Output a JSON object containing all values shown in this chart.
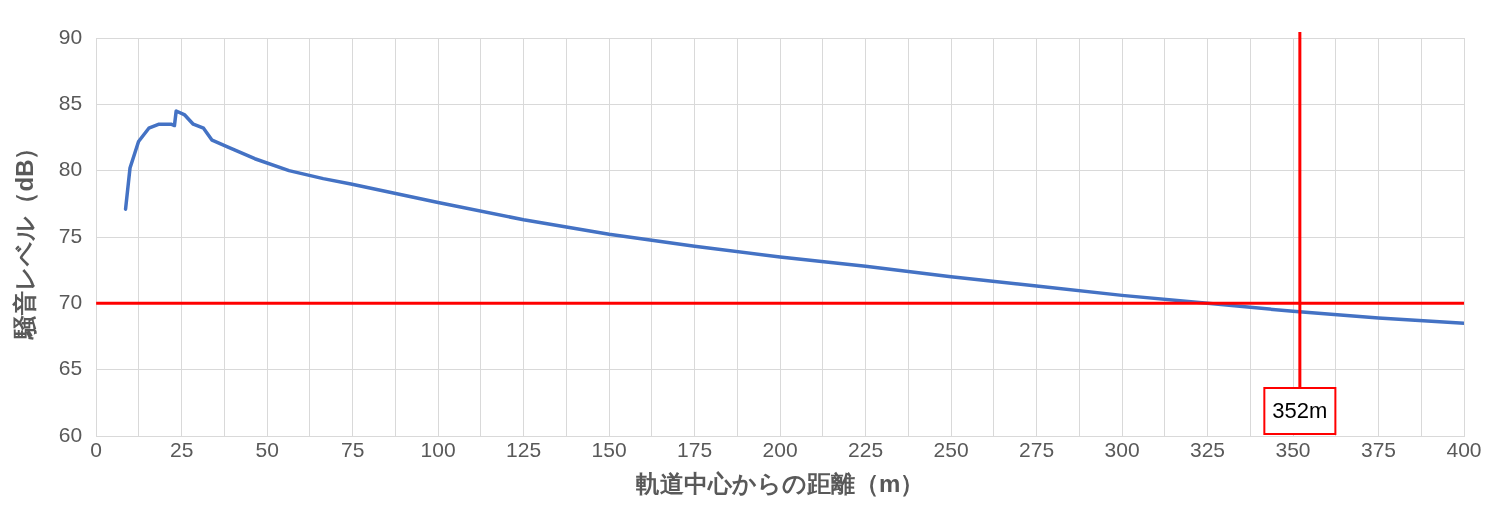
{
  "chart_data": {
    "type": "line",
    "xlabel": "軌道中心からの距離（m）",
    "ylabel": "騒音レベル（dB）",
    "series": [
      {
        "color": "#4472c4",
        "x": [
          8.6,
          9.9,
          12.4,
          15.4,
          18.4,
          21.9,
          22.9,
          23.4,
          25.9,
          28.4,
          31.4,
          33.9,
          38.4,
          46.4,
          56.4,
          66.4,
          74.5,
          100,
          125,
          150,
          175,
          200,
          225,
          250,
          275,
          300,
          325,
          350,
          375,
          400
        ],
        "values": [
          77.1,
          80.2,
          82.2,
          83.2,
          83.5,
          83.5,
          83.4,
          84.5,
          84.2,
          83.5,
          83.2,
          82.3,
          81.8,
          80.9,
          80.0,
          79.4,
          79.0,
          77.6,
          76.3,
          75.2,
          74.3,
          73.5,
          72.8,
          72.0,
          71.3,
          70.6,
          70.0,
          69.4,
          68.9,
          68.5
        ]
      }
    ],
    "xlim": [
      0,
      400
    ],
    "xticks": [
      0,
      {
        "value": 12.5,
        "label": null
      },
      25,
      {
        "value": 37.5,
        "label": null
      },
      50,
      {
        "value": 62.5,
        "label": null
      },
      75,
      {
        "value": 87.5,
        "label": null
      },
      100,
      {
        "value": 112.5,
        "label": null
      },
      125,
      {
        "value": 137.5,
        "label": null
      },
      150,
      {
        "value": 162.5,
        "label": null
      },
      175,
      {
        "value": 187.5,
        "label": null
      },
      200,
      {
        "value": 212.5,
        "label": null
      },
      225,
      {
        "value": 237.5,
        "label": null
      },
      250,
      {
        "value": 262.5,
        "label": null
      },
      275,
      {
        "value": 287.5,
        "label": null
      },
      300,
      {
        "value": 312.5,
        "label": null
      },
      325,
      {
        "value": 337.5,
        "label": null
      },
      350,
      {
        "value": 362.5,
        "label": null
      },
      375,
      {
        "value": 387.5,
        "label": null
      },
      400
    ],
    "ylim": [
      60,
      90
    ],
    "yticks": [
      60,
      65,
      70,
      75,
      80,
      85,
      90
    ],
    "ref_lines": [
      {
        "axis": "y",
        "value": 70,
        "color": "#ff0000"
      },
      {
        "axis": "x",
        "value": 352,
        "label": "352m",
        "color": "#ff0000"
      }
    ],
    "grid": true,
    "marker": "none",
    "line_style": "solid",
    "legend": false
  }
}
